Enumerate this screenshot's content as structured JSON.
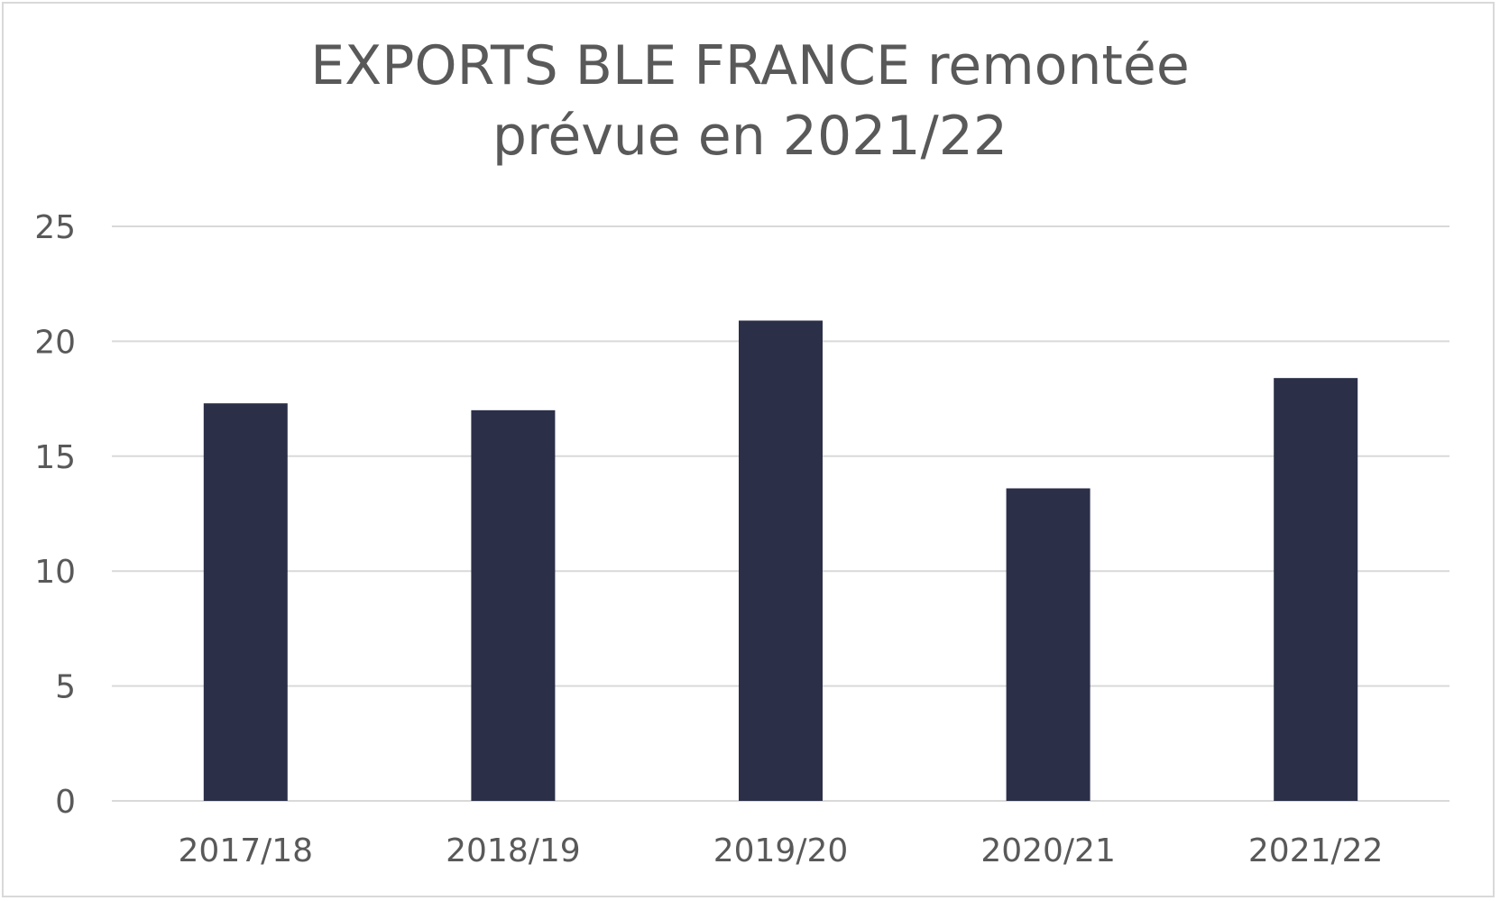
{
  "chart_data": {
    "type": "bar",
    "title_lines": [
      "EXPORTS BLE FRANCE remontée",
      "prévue en 2021/22"
    ],
    "categories": [
      "2017/18",
      "2018/19",
      "2019/20",
      "2020/21",
      "2021/22"
    ],
    "values": [
      17.3,
      17.0,
      20.9,
      13.6,
      18.4
    ],
    "yticks": [
      "0",
      "5",
      "10",
      "15",
      "20",
      "25"
    ],
    "ylim": [
      0,
      25
    ],
    "grid": true,
    "legend": "none",
    "bar_color": "#2b2f48",
    "grid_color": "#d9d9d9"
  }
}
